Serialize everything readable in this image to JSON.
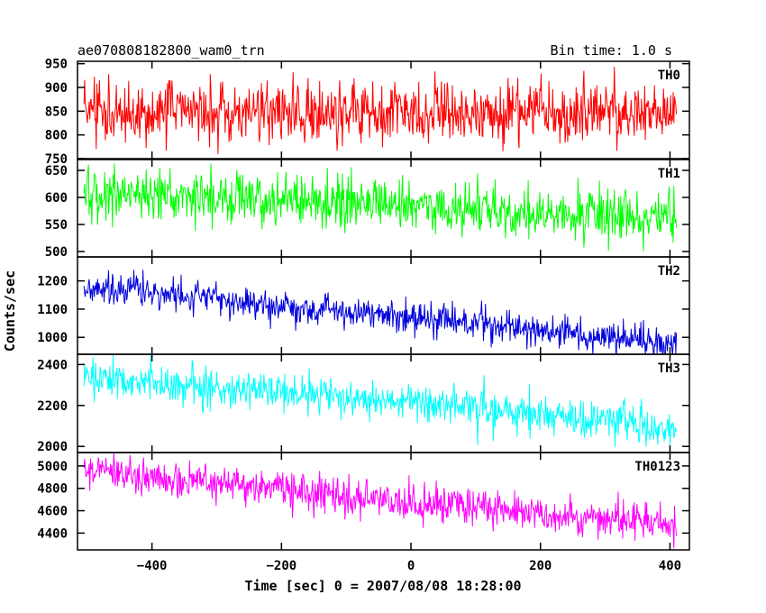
{
  "chart_data": {
    "type": "line",
    "title": "ae070808182800_wam0_trn",
    "subtitle": "Bin time: 1.0 s",
    "xlabel": "Time [sec] 0 = 2007/08/08 18:28:00",
    "ylabel": "Counts/sec",
    "xlim": [
      -515,
      430
    ],
    "xticks": [
      -400,
      -200,
      0,
      200,
      400
    ],
    "x_range": [
      -505,
      410
    ],
    "bin_time": 1.0,
    "grid": false,
    "panels": [
      {
        "name": "TH0",
        "color": "#ff0000",
        "ylim": [
          750,
          955
        ],
        "yticks": [
          750,
          800,
          850,
          900,
          950
        ],
        "series_trend": [
          {
            "x": -505,
            "y": 848
          },
          {
            "x": 0,
            "y": 848
          },
          {
            "x": 410,
            "y": 850
          }
        ],
        "noise_amplitude": 32
      },
      {
        "name": "TH1",
        "color": "#00ff00",
        "ylim": [
          490,
          670
        ],
        "yticks": [
          500,
          550,
          600,
          650
        ],
        "series_trend": [
          {
            "x": -505,
            "y": 610
          },
          {
            "x": 0,
            "y": 585
          },
          {
            "x": 410,
            "y": 560
          }
        ],
        "noise_amplitude": 24
      },
      {
        "name": "TH2",
        "color": "#0000dd",
        "ylim": [
          940,
          1285
        ],
        "yticks": [
          1000,
          1100,
          1200
        ],
        "series_trend": [
          {
            "x": -505,
            "y": 1180
          },
          {
            "x": 0,
            "y": 1070
          },
          {
            "x": 410,
            "y": 975
          }
        ],
        "noise_amplitude": 28
      },
      {
        "name": "TH3",
        "color": "#00ffff",
        "ylim": [
          1970,
          2450
        ],
        "yticks": [
          2000,
          2200,
          2400
        ],
        "series_trend": [
          {
            "x": -505,
            "y": 2330
          },
          {
            "x": 0,
            "y": 2220
          },
          {
            "x": 410,
            "y": 2090
          }
        ],
        "noise_amplitude": 45
      },
      {
        "name": "TH0123",
        "color": "#ff00ff",
        "ylim": [
          4250,
          5120
        ],
        "yticks": [
          4400,
          4600,
          4800,
          5000
        ],
        "series_trend": [
          {
            "x": -505,
            "y": 4960
          },
          {
            "x": 0,
            "y": 4680
          },
          {
            "x": 410,
            "y": 4470
          }
        ],
        "noise_amplitude": 85
      }
    ]
  }
}
